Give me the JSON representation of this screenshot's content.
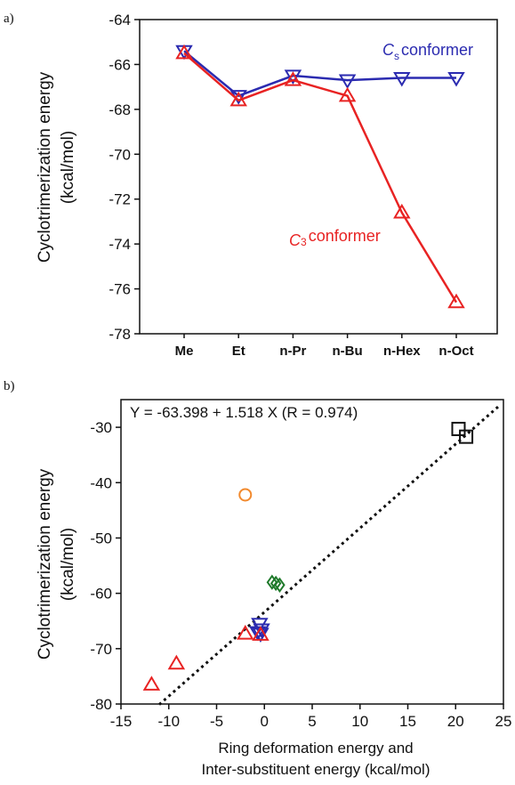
{
  "chart_data": [
    {
      "type": "line",
      "panel_label": "a)",
      "categories": [
        "Me",
        "Et",
        "n-Pr",
        "n-Bu",
        "n-Hex",
        "n-Oct"
      ],
      "ylim": [
        -78,
        -64
      ],
      "yticks": [
        "-64",
        "-66",
        "-68",
        "-70",
        "-72",
        "-74",
        "-76",
        "-78"
      ],
      "ylabel_line1": "Cyclotrimerization energy",
      "ylabel_line2": "(kcal/mol)",
      "grid": false,
      "series": [
        {
          "label_main": "C",
          "label_sub": "s",
          "label_rest": "conformer",
          "color": "#2b2bb0",
          "marker": "triangle-down",
          "values": [
            -65.4,
            -67.4,
            -66.5,
            -66.7,
            -66.6,
            -66.6
          ]
        },
        {
          "label_main": "C",
          "label_sub": "3",
          "label_rest": "conformer",
          "color": "#e82323",
          "marker": "triangle-up",
          "values": [
            -65.5,
            -67.6,
            -66.7,
            -67.4,
            -72.6,
            -76.6
          ]
        }
      ]
    },
    {
      "type": "scatter",
      "panel_label": "b)",
      "xlim": [
        -15,
        25
      ],
      "ylim": [
        -80,
        -25
      ],
      "xticks": [
        "-15",
        "-10",
        "-5",
        "0",
        "5",
        "10",
        "15",
        "20",
        "25"
      ],
      "yticks": [
        "-30",
        "-40",
        "-50",
        "-60",
        "-70",
        "-80"
      ],
      "ylabel_line1": "Cyclotrimerization energy",
      "ylabel_line2": "(kcal/mol)",
      "xlabel_line1": "Ring deformation energy and",
      "xlabel_line2": "Inter-substituent energy (kcal/mol)",
      "equation": "Y = -63.398 + 1.518 X (R = 0.974)",
      "fit": {
        "intercept": -63.398,
        "slope": 1.518
      },
      "series": [
        {
          "color": "#111111",
          "marker": "square",
          "points": [
            [
              20.3,
              -30.3
            ],
            [
              21.1,
              -31.7
            ]
          ]
        },
        {
          "color": "#f28a2e",
          "marker": "circle",
          "points": [
            [
              -2.0,
              -42.2
            ]
          ]
        },
        {
          "color": "#1f7a2b",
          "marker": "diamond",
          "points": [
            [
              0.8,
              -58.0
            ],
            [
              1.2,
              -58.2
            ],
            [
              1.6,
              -58.5
            ]
          ]
        },
        {
          "color": "#2b2bb0",
          "marker": "triangle-down",
          "points": [
            [
              -0.5,
              -65.5
            ],
            [
              -0.3,
              -66.5
            ],
            [
              -0.7,
              -67.0
            ],
            [
              -0.4,
              -67.3
            ]
          ]
        },
        {
          "color": "#e82323",
          "marker": "triangle-up",
          "points": [
            [
              -2.0,
              -67.3
            ],
            [
              -0.4,
              -67.5
            ],
            [
              -9.2,
              -72.7
            ],
            [
              -11.8,
              -76.5
            ]
          ]
        }
      ]
    }
  ]
}
